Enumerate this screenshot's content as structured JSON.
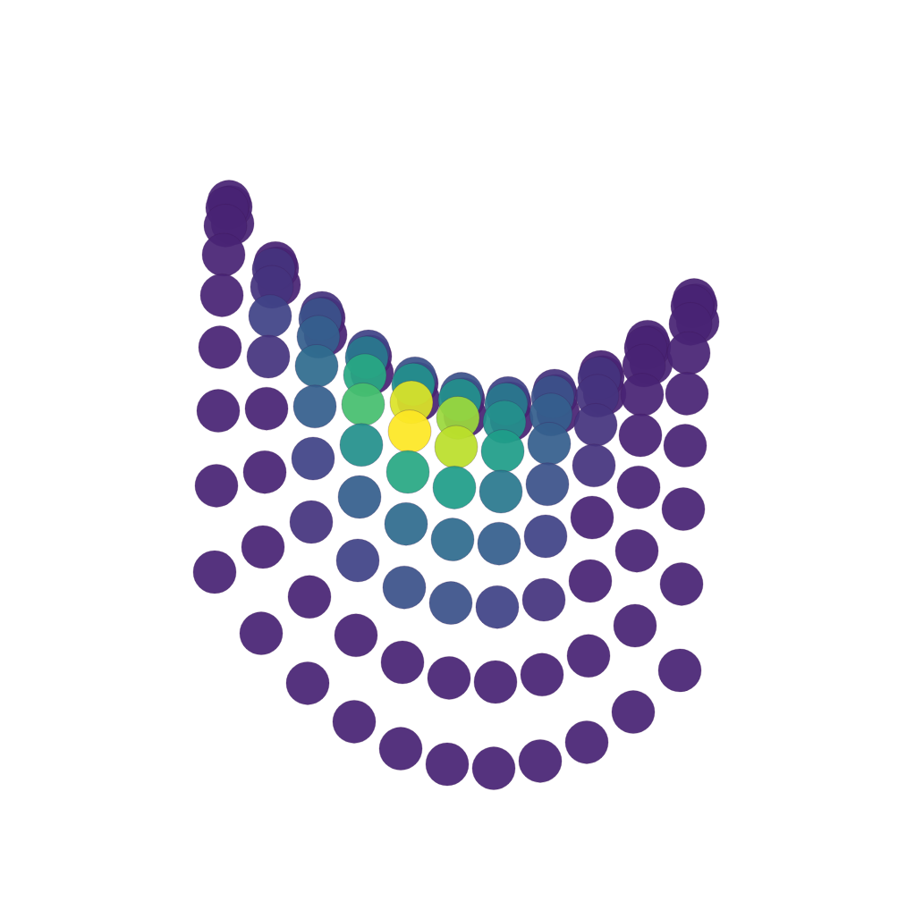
{
  "chart_data": {
    "type": "scatter3d",
    "tick_labels": false,
    "grid": false,
    "xlim": [
      -1,
      1
    ],
    "ylim": [
      -1,
      1
    ],
    "zlim": [
      -1,
      1
    ],
    "color_range": [
      0,
      1
    ],
    "x": [
      -1,
      -0.8,
      -0.6,
      -0.4,
      -0.2,
      0,
      0.2,
      0.4,
      0.6,
      0.8,
      1,
      -1,
      -0.8,
      -0.6,
      -0.4,
      -0.2,
      0,
      0.2,
      0.4,
      0.6,
      0.8,
      1,
      -1,
      -0.8,
      -0.6,
      -0.4,
      -0.2,
      0,
      0.2,
      0.4,
      0.6,
      0.8,
      1,
      -1,
      -0.8,
      -0.6,
      -0.4,
      -0.2,
      0,
      0.2,
      0.4,
      0.6,
      0.8,
      1,
      -1,
      -0.8,
      -0.6,
      -0.4,
      -0.2,
      0,
      0.2,
      0.4,
      0.6,
      0.8,
      1,
      -1,
      -0.8,
      -0.6,
      -0.4,
      -0.2,
      0,
      0.2,
      0.4,
      0.6,
      0.8,
      1,
      -1,
      -0.8,
      -0.6,
      -0.4,
      -0.2,
      0,
      0.2,
      0.4,
      0.6,
      0.8,
      1,
      -1,
      -0.8,
      -0.6,
      -0.4,
      -0.2,
      0,
      0.2,
      0.4,
      0.6,
      0.8,
      1,
      -1,
      -0.8,
      -0.6,
      -0.4,
      -0.2,
      0,
      0.2,
      0.4,
      0.6,
      0.8,
      1,
      -1,
      -0.8,
      -0.6,
      -0.4,
      -0.2,
      0,
      0.2,
      0.4,
      0.6,
      0.8,
      1,
      -1,
      -0.8,
      -0.6,
      -0.4,
      -0.2,
      0,
      0.2,
      0.4,
      0.6,
      0.8,
      1
    ],
    "y": [
      -1,
      -1,
      -1,
      -1,
      -1,
      -1,
      -1,
      -1,
      -1,
      -1,
      -1,
      -0.8,
      -0.8,
      -0.8,
      -0.8,
      -0.8,
      -0.8,
      -0.8,
      -0.8,
      -0.8,
      -0.8,
      -0.8,
      -0.6,
      -0.6,
      -0.6,
      -0.6,
      -0.6,
      -0.6,
      -0.6,
      -0.6,
      -0.6,
      -0.6,
      -0.6,
      -0.4,
      -0.4,
      -0.4,
      -0.4,
      -0.4,
      -0.4,
      -0.4,
      -0.4,
      -0.4,
      -0.4,
      -0.4,
      -0.2,
      -0.2,
      -0.2,
      -0.2,
      -0.2,
      -0.2,
      -0.2,
      -0.2,
      -0.2,
      -0.2,
      -0.2,
      0,
      0,
      0,
      0,
      0,
      0,
      0,
      0,
      0,
      0,
      0,
      0.2,
      0.2,
      0.2,
      0.2,
      0.2,
      0.2,
      0.2,
      0.2,
      0.2,
      0.2,
      0.2,
      0.4,
      0.4,
      0.4,
      0.4,
      0.4,
      0.4,
      0.4,
      0.4,
      0.4,
      0.4,
      0.4,
      0.6,
      0.6,
      0.6,
      0.6,
      0.6,
      0.6,
      0.6,
      0.6,
      0.6,
      0.6,
      0.6,
      0.8,
      0.8,
      0.8,
      0.8,
      0.8,
      0.8,
      0.8,
      0.8,
      0.8,
      0.8,
      0.8,
      1,
      1,
      1,
      1,
      1,
      1,
      1,
      1,
      1,
      1,
      1
    ],
    "z": [
      0,
      -0.36,
      -0.64,
      -0.84,
      -0.96,
      -1,
      -0.96,
      -0.84,
      -0.64,
      -0.36,
      0,
      0.36,
      0,
      -0.28,
      -0.48,
      -0.6,
      -0.64,
      -0.6,
      -0.48,
      -0.28,
      0,
      0.36,
      0.64,
      0.28,
      0,
      -0.2,
      -0.32,
      -0.36,
      -0.32,
      -0.2,
      0,
      0.28,
      0.64,
      0.84,
      0.48,
      0.2,
      0,
      -0.12,
      -0.16,
      -0.12,
      0,
      0.2,
      0.48,
      0.84,
      0.96,
      0.6,
      0.32,
      0.12,
      0,
      -0.04,
      0,
      0.12,
      0.32,
      0.6,
      0.96,
      1,
      0.64,
      0.36,
      0.16,
      0.04,
      0,
      0.04,
      0.16,
      0.36,
      0.64,
      1,
      0.96,
      0.6,
      0.32,
      0.12,
      0,
      -0.04,
      0,
      0.12,
      0.32,
      0.6,
      0.96,
      0.84,
      0.48,
      0.2,
      0,
      -0.12,
      -0.16,
      -0.12,
      0,
      0.2,
      0.48,
      0.84,
      0.64,
      0.28,
      0,
      -0.2,
      -0.32,
      -0.36,
      -0.32,
      -0.2,
      0,
      0.28,
      0.64,
      0.36,
      0,
      -0.28,
      -0.48,
      -0.6,
      -0.64,
      -0.6,
      -0.48,
      -0.28,
      0,
      0.36,
      0,
      -0.36,
      -0.64,
      -0.84,
      -0.96,
      -1,
      -0.96,
      -0.84,
      -0.64,
      -0.36,
      0
    ],
    "color_values": [
      0.1,
      0.1,
      0.1,
      0.1,
      0.1,
      0.1,
      0.1,
      0.1,
      0.1,
      0.1,
      0.1,
      0.1,
      0.1,
      0.1,
      0.1,
      0.1,
      0.1,
      0.1,
      0.1,
      0.1,
      0.1,
      0.1,
      0.1,
      0.1,
      0.15,
      0.2,
      0.25,
      0.25,
      0.2,
      0.15,
      0.1,
      0.1,
      0.1,
      0.1,
      0.15,
      0.25,
      0.4,
      0.5,
      0.5,
      0.4,
      0.25,
      0.15,
      0.1,
      0.1,
      0.1,
      0.15,
      0.3,
      0.6,
      0.95,
      0.85,
      0.5,
      0.3,
      0.15,
      0.1,
      0.1,
      0.1,
      0.2,
      0.35,
      0.7,
      1,
      0.9,
      0.55,
      0.3,
      0.15,
      0.1,
      0.1,
      0.1,
      0.15,
      0.3,
      0.5,
      0.6,
      0.55,
      0.4,
      0.25,
      0.15,
      0.1,
      0.1,
      0.1,
      0.1,
      0.2,
      0.3,
      0.35,
      0.35,
      0.3,
      0.2,
      0.1,
      0.1,
      0.1,
      0.1,
      0.1,
      0.15,
      0.2,
      0.25,
      0.25,
      0.2,
      0.15,
      0.1,
      0.1,
      0.1,
      0.1,
      0.1,
      0.1,
      0.1,
      0.1,
      0.1,
      0.1,
      0.1,
      0.1,
      0.1,
      0.1,
      0.1,
      0.1,
      0.1,
      0.1,
      0.1,
      0.1,
      0.1,
      0.1,
      0.1,
      0.1,
      0.1
    ]
  }
}
